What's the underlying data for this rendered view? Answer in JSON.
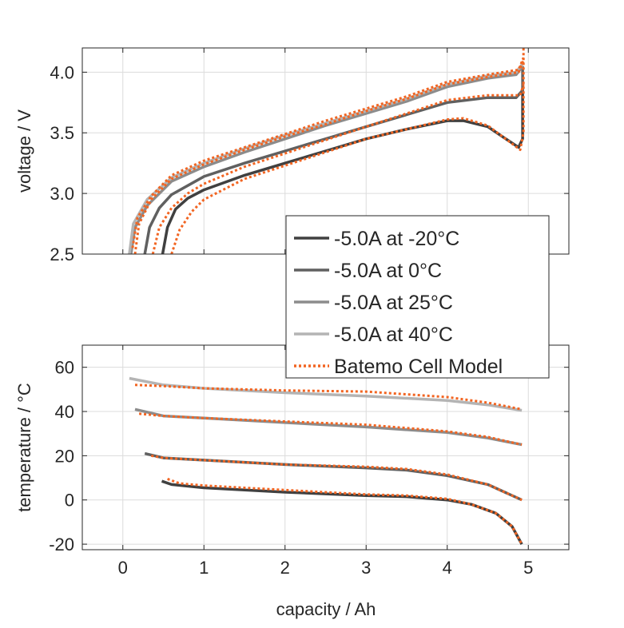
{
  "chart_data": [
    {
      "type": "line",
      "xlabel": "",
      "ylabel": "voltage / V",
      "xlim": [
        -0.5,
        5.5
      ],
      "ylim": [
        2.5,
        4.2
      ],
      "xticks": [
        0,
        1,
        2,
        3,
        4,
        5
      ],
      "yticks": [
        2.5,
        3.0,
        3.5,
        4.0
      ],
      "ytick_labels": [
        "2.5",
        "3.0",
        "3.5",
        "4.0"
      ],
      "grid": true,
      "series": [
        {
          "name": "-5.0A at -20°C",
          "color": "#404040",
          "style": "solid",
          "x": [
            0.49,
            0.55,
            0.65,
            0.8,
            1.0,
            1.5,
            2.0,
            2.5,
            3.0,
            3.5,
            4.0,
            4.2,
            4.5,
            4.7,
            4.88,
            4.93,
            4.93
          ],
          "y": [
            2.5,
            2.72,
            2.87,
            2.96,
            3.03,
            3.15,
            3.25,
            3.35,
            3.45,
            3.53,
            3.6,
            3.6,
            3.55,
            3.46,
            3.38,
            3.45,
            3.85
          ]
        },
        {
          "name": "-5.0A at 0°C",
          "color": "#606060",
          "style": "solid",
          "x": [
            0.27,
            0.33,
            0.45,
            0.6,
            1.0,
            1.5,
            2.0,
            2.5,
            3.0,
            3.5,
            4.0,
            4.5,
            4.85,
            4.93,
            4.93
          ],
          "y": [
            2.5,
            2.72,
            2.88,
            2.99,
            3.14,
            3.25,
            3.35,
            3.45,
            3.55,
            3.65,
            3.75,
            3.79,
            3.79,
            3.85,
            4.05
          ]
        },
        {
          "name": "-5.0A at 25°C",
          "color": "#8c8c8c",
          "style": "solid",
          "x": [
            0.1,
            0.15,
            0.3,
            0.6,
            1.0,
            1.5,
            2.0,
            2.5,
            3.0,
            3.5,
            4.0,
            4.5,
            4.85,
            4.93
          ],
          "y": [
            2.5,
            2.72,
            2.9,
            3.1,
            3.22,
            3.34,
            3.45,
            3.56,
            3.66,
            3.76,
            3.88,
            3.95,
            3.98,
            4.05
          ]
        },
        {
          "name": "-5.0A at 40°C",
          "color": "#b4b4b4",
          "style": "solid",
          "x": [
            0.08,
            0.13,
            0.3,
            0.6,
            1.0,
            1.5,
            2.0,
            2.5,
            3.0,
            3.5,
            4.0,
            4.5,
            4.85,
            4.93
          ],
          "y": [
            2.5,
            2.75,
            2.95,
            3.13,
            3.25,
            3.37,
            3.48,
            3.58,
            3.68,
            3.78,
            3.9,
            3.97,
            4.0,
            4.07
          ]
        },
        {
          "name": "Batemo Cell Model",
          "color": "#f26522",
          "style": "dotted",
          "x": [
            0.6,
            0.7,
            0.85,
            1.0,
            1.5,
            2.0,
            2.5,
            3.0,
            3.5,
            4.0,
            4.2,
            4.5,
            4.7,
            4.9,
            4.94,
            4.94
          ],
          "y": [
            2.5,
            2.7,
            2.85,
            2.95,
            3.12,
            3.23,
            3.34,
            3.45,
            3.53,
            3.61,
            3.62,
            3.56,
            3.46,
            3.36,
            3.5,
            4.2
          ]
        },
        {
          "name": "",
          "color": "#f26522",
          "style": "dotted",
          "x": [
            0.37,
            0.45,
            0.6,
            0.8,
            1.0,
            1.5,
            2.0,
            2.5,
            3.0,
            3.5,
            4.0,
            4.5,
            4.9,
            4.94
          ],
          "y": [
            2.5,
            2.72,
            2.88,
            3.0,
            3.08,
            3.22,
            3.33,
            3.44,
            3.55,
            3.66,
            3.77,
            3.81,
            3.81,
            3.9
          ]
        },
        {
          "name": "",
          "color": "#f26522",
          "style": "dotted",
          "x": [
            0.15,
            0.2,
            0.35,
            0.6,
            1.0,
            1.5,
            2.0,
            2.5,
            3.0,
            3.5,
            4.0,
            4.5,
            4.88,
            4.94
          ],
          "y": [
            2.5,
            2.75,
            2.95,
            3.12,
            3.24,
            3.36,
            3.47,
            3.57,
            3.68,
            3.78,
            3.9,
            3.96,
            4.0,
            4.1
          ]
        },
        {
          "name": "",
          "color": "#f26522",
          "style": "dotted",
          "x": [
            0.12,
            0.18,
            0.35,
            0.6,
            1.0,
            1.5,
            2.0,
            2.5,
            3.0,
            3.5,
            4.0,
            4.5,
            4.88,
            4.94
          ],
          "y": [
            2.55,
            2.8,
            2.98,
            3.15,
            3.27,
            3.38,
            3.49,
            3.6,
            3.7,
            3.8,
            3.92,
            3.98,
            4.02,
            4.12
          ]
        }
      ]
    },
    {
      "type": "line",
      "xlabel": "capacity / Ah",
      "ylabel": "temperature / °C",
      "xlim": [
        -0.5,
        5.5
      ],
      "ylim": [
        -22.5,
        70
      ],
      "xticks": [
        0,
        1,
        2,
        3,
        4,
        5
      ],
      "xtick_labels": [
        "0",
        "1",
        "2",
        "3",
        "4",
        "5"
      ],
      "yticks": [
        -20,
        0,
        20,
        40,
        60
      ],
      "ytick_labels": [
        "-20",
        "0",
        "20",
        "40",
        "60"
      ],
      "grid": true,
      "series": [
        {
          "name": "-5.0A at -20°C",
          "color": "#404040",
          "style": "solid",
          "x": [
            0.48,
            0.6,
            1.0,
            2.0,
            3.0,
            3.5,
            4.0,
            4.3,
            4.6,
            4.8,
            4.92
          ],
          "y": [
            8.5,
            7,
            5.5,
            3.5,
            2,
            1.5,
            0,
            -2,
            -6,
            -12,
            -20
          ]
        },
        {
          "name": "-5.0A at 0°C",
          "color": "#606060",
          "style": "solid",
          "x": [
            0.27,
            0.5,
            1.0,
            2.0,
            3.0,
            3.5,
            4.0,
            4.5,
            4.92
          ],
          "y": [
            21,
            19,
            18,
            16,
            14.5,
            13.5,
            11,
            7,
            0
          ]
        },
        {
          "name": "-5.0A at 25°C",
          "color": "#8c8c8c",
          "style": "solid",
          "x": [
            0.15,
            0.5,
            1.0,
            2.0,
            3.0,
            4.0,
            4.5,
            4.92
          ],
          "y": [
            41,
            38,
            37,
            35,
            33,
            30.5,
            28,
            25
          ]
        },
        {
          "name": "-5.0A at 40°C",
          "color": "#b4b4b4",
          "style": "solid",
          "x": [
            0.08,
            0.5,
            1.0,
            2.0,
            3.0,
            4.0,
            4.5,
            4.92
          ],
          "y": [
            55,
            52,
            50.5,
            48.5,
            47,
            45,
            43,
            40.5
          ]
        },
        {
          "name": "Batemo Cell Model",
          "color": "#f26522",
          "style": "dotted",
          "x": [
            0.55,
            0.7,
            1.0,
            2.0,
            3.0,
            3.5,
            4.0,
            4.3,
            4.6,
            4.8,
            4.92
          ],
          "y": [
            9.5,
            7.5,
            6.5,
            4.5,
            2.5,
            2,
            0.5,
            -2,
            -6,
            -12,
            -20
          ]
        },
        {
          "name": "",
          "color": "#f26522",
          "style": "dotted",
          "x": [
            0.35,
            0.5,
            1.0,
            2.0,
            3.0,
            3.5,
            4.0,
            4.5,
            4.92
          ],
          "y": [
            20,
            19,
            18,
            16,
            15,
            14,
            11.5,
            7,
            0
          ]
        },
        {
          "name": "",
          "color": "#f26522",
          "style": "dotted",
          "x": [
            0.2,
            0.5,
            1.0,
            2.0,
            3.0,
            4.0,
            4.5,
            4.92
          ],
          "y": [
            39,
            38,
            37,
            35.5,
            34,
            31,
            28.5,
            25
          ]
        },
        {
          "name": "",
          "color": "#f26522",
          "style": "dotted",
          "x": [
            0.15,
            0.5,
            1.0,
            2.0,
            3.0,
            4.0,
            4.5,
            4.92
          ],
          "y": [
            52,
            51.5,
            50.5,
            49.5,
            49,
            46.5,
            44,
            41
          ]
        }
      ]
    }
  ],
  "legend": {
    "placement": "between plots, right",
    "entries": [
      {
        "label": "-5.0A at -20°C",
        "color": "#404040",
        "style": "solid"
      },
      {
        "label": "-5.0A at 0°C",
        "color": "#606060",
        "style": "solid"
      },
      {
        "label": "-5.0A at 25°C",
        "color": "#8c8c8c",
        "style": "solid"
      },
      {
        "label": "-5.0A at 40°C",
        "color": "#b4b4b4",
        "style": "solid"
      },
      {
        "label": "Batemo Cell Model",
        "color": "#f26522",
        "style": "dotted"
      }
    ]
  }
}
